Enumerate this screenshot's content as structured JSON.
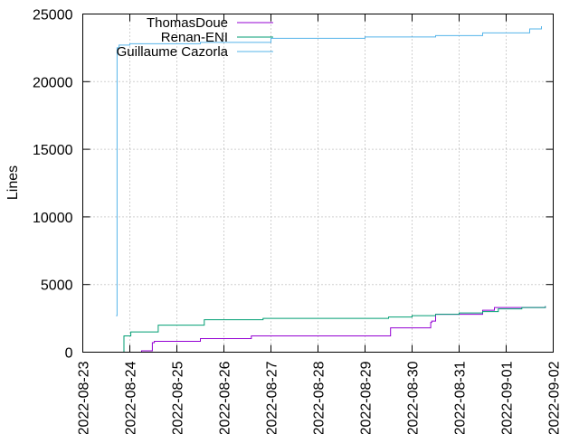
{
  "chart_data": {
    "type": "line",
    "title": "",
    "xlabel": "",
    "ylabel": "Lines",
    "x_axis_type": "date",
    "xlim": [
      "2022-08-23",
      "2022-09-02"
    ],
    "ylim": [
      0,
      25000
    ],
    "xticks": [
      "2022-08-23",
      "2022-08-24",
      "2022-08-25",
      "2022-08-26",
      "2022-08-27",
      "2022-08-28",
      "2022-08-29",
      "2022-08-30",
      "2022-08-31",
      "2022-09-01",
      "2022-09-02"
    ],
    "yticks": [
      0,
      5000,
      10000,
      15000,
      20000,
      25000
    ],
    "grid": true,
    "legend_position": "top-left",
    "series": [
      {
        "name": "ThomasDoue",
        "color": "#9400d3",
        "x": [
          "2022-08-23T19:00",
          "2022-08-24T06:00",
          "2022-08-24T11:00",
          "2022-08-24T11:30",
          "2022-08-24T12:30",
          "2022-08-25T12:00",
          "2022-08-26T14:00",
          "2022-08-29T10:30",
          "2022-08-29T13:00",
          "2022-08-30T09:30",
          "2022-08-30T10:00",
          "2022-08-30T12:00",
          "2022-08-30T22:00",
          "2022-08-31T12:00",
          "2022-08-31T18:00",
          "2022-09-01T06:00",
          "2022-09-01T20:00"
        ],
        "y": [
          0,
          100,
          100,
          700,
          800,
          1000,
          1200,
          1200,
          1800,
          2200,
          2300,
          2800,
          2800,
          3100,
          3300,
          3300,
          3400
        ]
      },
      {
        "name": "Renan-ENI",
        "color": "#009e73",
        "x": [
          "2022-08-23T18:00",
          "2022-08-23T21:00",
          "2022-08-24T00:30",
          "2022-08-24T12:00",
          "2022-08-24T14:30",
          "2022-08-25T14:00",
          "2022-08-26T20:00",
          "2022-08-29T10:30",
          "2022-08-29T12:00",
          "2022-08-30T00:00",
          "2022-08-30T12:00",
          "2022-08-31T00:00",
          "2022-08-31T12:00",
          "2022-08-31T20:00",
          "2022-09-01T08:00",
          "2022-09-01T20:00"
        ],
        "y": [
          0,
          1200,
          1500,
          1500,
          2000,
          2400,
          2500,
          2500,
          2600,
          2700,
          2800,
          2900,
          3000,
          3200,
          3300,
          3400
        ]
      },
      {
        "name": "Guillaume Cazorla",
        "color": "#56b4e9",
        "x": [
          "2022-08-23T17:00",
          "2022-08-23T17:30",
          "2022-08-23T18:30",
          "2022-08-24T00:00",
          "2022-08-25T12:00",
          "2022-08-27T00:00",
          "2022-08-29T00:00",
          "2022-08-30T12:00",
          "2022-08-31T12:00",
          "2022-09-01T12:00",
          "2022-09-01T18:00"
        ],
        "y": [
          2700,
          22500,
          22700,
          22800,
          22900,
          23200,
          23300,
          23400,
          23600,
          23900,
          24100
        ]
      }
    ]
  }
}
